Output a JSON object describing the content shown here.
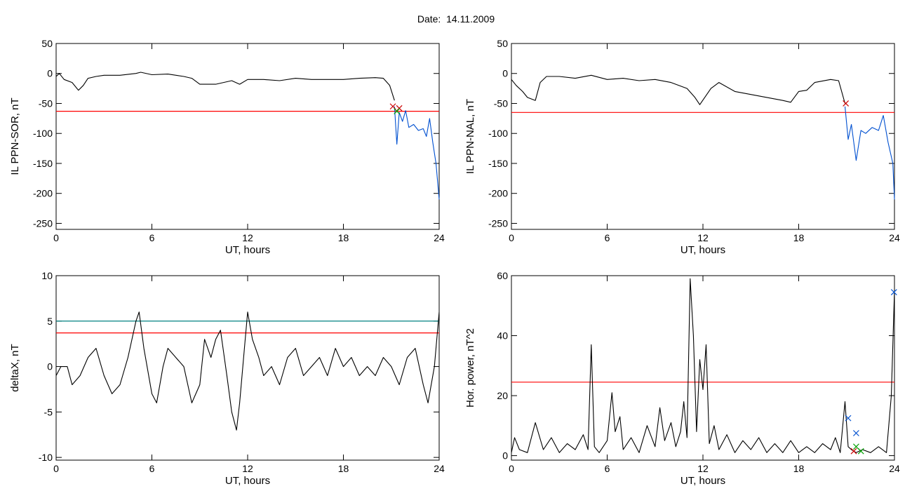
{
  "title": "Date:  14.11.2009",
  "chart_data": [
    {
      "type": "line",
      "xlabel": "UT, hours",
      "ylabel": "IL PPN-SOR, nT",
      "xlim": [
        0,
        24
      ],
      "ylim": [
        -260,
        50
      ],
      "xticks": [
        0,
        6,
        12,
        18,
        24
      ],
      "yticks": [
        50,
        0,
        -50,
        -100,
        -150,
        -200,
        -250
      ],
      "thresholds": [
        {
          "value": -63,
          "color": "#ff0000"
        }
      ],
      "series": [
        {
          "color": "#000000",
          "x": [
            0,
            0.2,
            0.5,
            1,
            1.4,
            1.7,
            2,
            2.5,
            3,
            4,
            5,
            5.3,
            6,
            7,
            8,
            8.5,
            9,
            10,
            11,
            11.5,
            12,
            13,
            14,
            15,
            16,
            17,
            18,
            19,
            20,
            20.5,
            20.9,
            21.2
          ],
          "y": [
            -5,
            0,
            -10,
            -15,
            -28,
            -20,
            -8,
            -5,
            -3,
            -3,
            0,
            2,
            -2,
            -1,
            -5,
            -8,
            -18,
            -18,
            -12,
            -18,
            -10,
            -10,
            -12,
            -8,
            -10,
            -10,
            -10,
            -8,
            -7,
            -8,
            -20,
            -45
          ]
        },
        {
          "color": "#0050d0",
          "x": [
            21.2,
            21.35,
            21.5,
            21.7,
            21.9,
            22.1,
            22.4,
            22.7,
            23,
            23.2,
            23.4,
            23.6,
            23.8,
            24
          ],
          "y": [
            -55,
            -118,
            -65,
            -80,
            -62,
            -90,
            -85,
            -95,
            -92,
            -105,
            -75,
            -115,
            -150,
            -210
          ]
        }
      ],
      "markers": [
        {
          "x": 21.1,
          "y": -55,
          "color": "#cc0000"
        },
        {
          "x": 21.5,
          "y": -58,
          "color": "#cc0000"
        },
        {
          "x": 21.35,
          "y": -63,
          "color": "#00a000"
        }
      ]
    },
    {
      "type": "line",
      "xlabel": "UT, hours",
      "ylabel": "IL PPN-NAL, nT",
      "xlim": [
        0,
        24
      ],
      "ylim": [
        -260,
        50
      ],
      "xticks": [
        0,
        6,
        12,
        18,
        24
      ],
      "yticks": [
        50,
        0,
        -50,
        -100,
        -150,
        -200,
        -250
      ],
      "thresholds": [
        {
          "value": -65,
          "color": "#ff0000"
        }
      ],
      "series": [
        {
          "color": "#000000",
          "x": [
            0,
            0.3,
            0.7,
            1,
            1.5,
            1.8,
            2.2,
            3,
            4,
            5,
            6,
            7,
            8,
            9,
            10,
            11,
            11.5,
            11.8,
            12.5,
            13,
            14,
            15,
            16,
            17,
            17.5,
            18,
            18.5,
            19,
            20,
            20.5,
            20.9
          ],
          "y": [
            -10,
            -20,
            -30,
            -40,
            -45,
            -15,
            -5,
            -5,
            -8,
            -3,
            -10,
            -8,
            -12,
            -10,
            -15,
            -25,
            -40,
            -52,
            -25,
            -15,
            -30,
            -35,
            -40,
            -45,
            -48,
            -30,
            -28,
            -15,
            -10,
            -12,
            -50
          ]
        },
        {
          "color": "#0050d0",
          "x": [
            20.9,
            21.1,
            21.3,
            21.6,
            21.9,
            22.2,
            22.6,
            23,
            23.3,
            23.6,
            23.9,
            24
          ],
          "y": [
            -55,
            -110,
            -85,
            -145,
            -95,
            -100,
            -90,
            -95,
            -70,
            -115,
            -150,
            -210
          ]
        }
      ],
      "markers": [
        {
          "x": 20.95,
          "y": -50,
          "color": "#cc0000"
        }
      ]
    },
    {
      "type": "line",
      "xlabel": "UT, hours",
      "ylabel": "deltaX, nT",
      "xlim": [
        0,
        24
      ],
      "ylim": [
        -10.3,
        10
      ],
      "xticks": [
        0,
        6,
        12,
        18,
        24
      ],
      "yticks": [
        10,
        5,
        0,
        -5,
        -10
      ],
      "thresholds": [
        {
          "value": 5,
          "color": "#008080"
        },
        {
          "value": 3.7,
          "color": "#ff0000"
        }
      ],
      "series": [
        {
          "color": "#000000",
          "x": [
            0,
            0.3,
            0.7,
            1,
            1.5,
            2,
            2.5,
            3,
            3.5,
            4,
            4.5,
            5,
            5.2,
            5.5,
            6,
            6.3,
            6.7,
            7,
            7.5,
            8,
            8.5,
            9,
            9.3,
            9.7,
            10,
            10.3,
            10.7,
            11,
            11.3,
            11.5,
            11.8,
            12,
            12.3,
            12.7,
            13,
            13.5,
            14,
            14.5,
            15,
            15.5,
            16,
            16.5,
            17,
            17.5,
            18,
            18.5,
            19,
            19.5,
            20,
            20.5,
            21,
            21.5,
            22,
            22.5,
            23,
            23.3,
            23.7,
            24
          ],
          "y": [
            -1,
            0,
            0,
            -2,
            -1,
            1,
            2,
            -1,
            -3,
            -2,
            1,
            5,
            6,
            2,
            -3,
            -4,
            0,
            2,
            1,
            0,
            -4,
            -2,
            3,
            1,
            3,
            4,
            -1,
            -5,
            -7,
            -4,
            2,
            6,
            3,
            1,
            -1,
            0,
            -2,
            1,
            2,
            -1,
            0,
            1,
            -1,
            2,
            0,
            1,
            -1,
            0,
            -1,
            1,
            0,
            -2,
            1,
            2,
            -2,
            -4,
            0,
            6
          ]
        }
      ],
      "markers": []
    },
    {
      "type": "line",
      "xlabel": "UT, hours",
      "ylabel": "Hor. power, nT^2",
      "xlim": [
        0,
        24
      ],
      "ylim": [
        -1.5,
        60
      ],
      "xticks": [
        0,
        6,
        12,
        18,
        24
      ],
      "yticks": [
        60,
        40,
        20,
        0
      ],
      "thresholds": [
        {
          "value": 24.5,
          "color": "#ff0000"
        }
      ],
      "series": [
        {
          "color": "#000000",
          "x": [
            0,
            0.2,
            0.5,
            1,
            1.5,
            2,
            2.5,
            3,
            3.5,
            4,
            4.5,
            4.8,
            5,
            5.2,
            5.5,
            6,
            6.3,
            6.5,
            6.8,
            7,
            7.5,
            8,
            8.5,
            9,
            9.3,
            9.6,
            10,
            10.3,
            10.6,
            10.8,
            11,
            11.2,
            11.4,
            11.6,
            11.8,
            12,
            12.2,
            12.4,
            12.7,
            13,
            13.5,
            14,
            14.5,
            15,
            15.5,
            16,
            16.5,
            17,
            17.5,
            18,
            18.5,
            19,
            19.5,
            20,
            20.3,
            20.6,
            20.9,
            21.1,
            21.3,
            21.6,
            22,
            22.5,
            23,
            23.5,
            23.8,
            24
          ],
          "y": [
            1,
            6,
            2,
            1,
            11,
            2,
            6,
            1,
            4,
            2,
            7,
            2,
            37,
            3,
            1,
            5,
            21,
            8,
            13,
            2,
            6,
            1,
            10,
            3,
            16,
            5,
            11,
            3,
            8,
            18,
            6,
            59,
            40,
            8,
            32,
            22,
            37,
            4,
            10,
            2,
            7,
            1,
            5,
            2,
            6,
            1,
            4,
            1,
            5,
            1,
            3,
            1,
            4,
            2,
            6,
            1,
            18,
            3,
            2,
            1,
            2,
            1,
            3,
            1,
            20,
            55
          ]
        }
      ],
      "markers": [
        {
          "x": 21.1,
          "y": 12.5,
          "color": "#0050d0"
        },
        {
          "x": 21.6,
          "y": 7.5,
          "color": "#0050d0"
        },
        {
          "x": 23.97,
          "y": 54.5,
          "color": "#0050d0"
        },
        {
          "x": 21.45,
          "y": 1.5,
          "color": "#cc0000"
        },
        {
          "x": 21.6,
          "y": 3,
          "color": "#00a000"
        },
        {
          "x": 21.9,
          "y": 1.5,
          "color": "#00a000"
        }
      ]
    }
  ]
}
